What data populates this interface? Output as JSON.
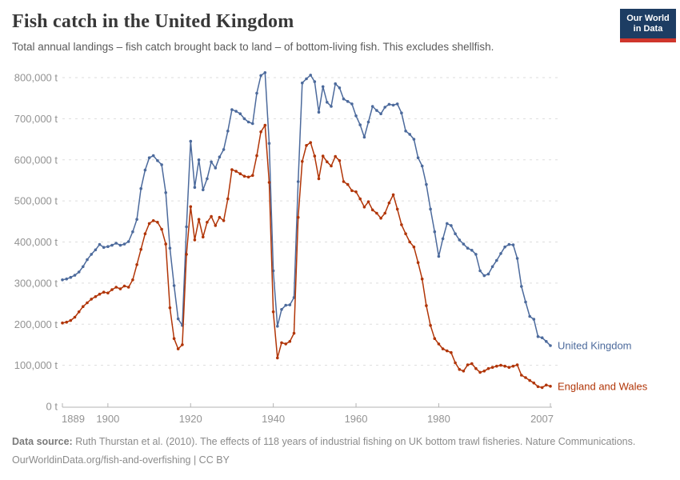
{
  "header": {
    "title": "Fish catch in the United Kingdom",
    "subtitle": "Total annual landings – fish catch brought back to land – of bottom-living fish. This excludes shellfish.",
    "logo": {
      "line1": "Our World",
      "line2": "in Data",
      "bg_color": "#1d3d63",
      "accent_color": "#cf362c"
    }
  },
  "footer": {
    "source_label": "Data source:",
    "source_text": " Ruth Thurstan et al. (2010). The effects of 118 years of industrial fishing on UK bottom trawl fisheries. Nature Communications.",
    "link_line": "OurWorldinData.org/fish-and-overfishing | CC BY"
  },
  "chart_data": {
    "type": "line",
    "title": "Fish catch in the United Kingdom",
    "unit": "t",
    "ylabel": "",
    "xlabel": "",
    "ylim": [
      0,
      800000
    ],
    "y_ticks": [
      0,
      100000,
      200000,
      300000,
      400000,
      500000,
      600000,
      700000,
      800000
    ],
    "x_ticks": [
      1889,
      1900,
      1920,
      1940,
      1960,
      1980,
      2007
    ],
    "grid": "horizontal-dashed",
    "legend_position": "right-end-labels",
    "marker": "circle",
    "x": [
      1889,
      1890,
      1891,
      1892,
      1893,
      1894,
      1895,
      1896,
      1897,
      1898,
      1899,
      1900,
      1901,
      1902,
      1903,
      1904,
      1905,
      1906,
      1907,
      1908,
      1909,
      1910,
      1911,
      1912,
      1913,
      1914,
      1915,
      1916,
      1917,
      1918,
      1919,
      1920,
      1921,
      1922,
      1923,
      1924,
      1925,
      1926,
      1927,
      1928,
      1929,
      1930,
      1931,
      1932,
      1933,
      1934,
      1935,
      1936,
      1937,
      1938,
      1939,
      1940,
      1941,
      1942,
      1943,
      1944,
      1945,
      1946,
      1947,
      1948,
      1949,
      1950,
      1951,
      1952,
      1953,
      1954,
      1955,
      1956,
      1957,
      1958,
      1959,
      1960,
      1961,
      1962,
      1963,
      1964,
      1965,
      1966,
      1967,
      1968,
      1969,
      1970,
      1971,
      1972,
      1973,
      1974,
      1975,
      1976,
      1977,
      1978,
      1979,
      1980,
      1981,
      1982,
      1983,
      1984,
      1985,
      1986,
      1987,
      1988,
      1989,
      1990,
      1991,
      1992,
      1993,
      1994,
      1995,
      1996,
      1997,
      1998,
      1999,
      2000,
      2001,
      2002,
      2003,
      2004,
      2005,
      2006,
      2007
    ],
    "series": [
      {
        "name": "United Kingdom",
        "color": "#4C6A9C",
        "values": [
          308000,
          310000,
          314000,
          319000,
          327000,
          340000,
          357000,
          370000,
          381000,
          394000,
          387000,
          389000,
          392000,
          397000,
          392000,
          395000,
          401000,
          425000,
          455000,
          530000,
          575000,
          605000,
          610000,
          598000,
          588000,
          520000,
          385000,
          294000,
          213000,
          197000,
          437000,
          645000,
          533000,
          600000,
          527000,
          554000,
          595000,
          580000,
          607000,
          625000,
          670000,
          722000,
          718000,
          712000,
          700000,
          692000,
          688000,
          762000,
          805000,
          812000,
          640000,
          330000,
          195000,
          236000,
          246000,
          247000,
          265000,
          547000,
          787000,
          797000,
          806000,
          790000,
          716000,
          778000,
          740000,
          730000,
          785000,
          775000,
          748000,
          742000,
          736000,
          707000,
          685000,
          655000,
          692000,
          730000,
          720000,
          712000,
          728000,
          735000,
          733000,
          736000,
          714000,
          670000,
          662000,
          650000,
          605000,
          585000,
          540000,
          480000,
          425000,
          365000,
          408000,
          445000,
          440000,
          420000,
          405000,
          395000,
          385000,
          380000,
          370000,
          330000,
          318000,
          322000,
          340000,
          355000,
          372000,
          388000,
          394000,
          393000,
          360000,
          292000,
          254000,
          219000,
          212000,
          170000,
          167000,
          158000,
          148000
        ]
      },
      {
        "name": "England and Wales",
        "color": "#B13507",
        "values": [
          203000,
          205000,
          209000,
          217000,
          230000,
          243000,
          252000,
          261000,
          267000,
          273000,
          278000,
          276000,
          284000,
          290000,
          286000,
          293000,
          290000,
          308000,
          345000,
          382000,
          420000,
          445000,
          452000,
          448000,
          431000,
          395000,
          240000,
          165000,
          140000,
          150000,
          370000,
          486000,
          405000,
          455000,
          412000,
          448000,
          462000,
          440000,
          460000,
          452000,
          505000,
          576000,
          572000,
          566000,
          560000,
          558000,
          562000,
          610000,
          668000,
          684000,
          545000,
          230000,
          118000,
          155000,
          152000,
          158000,
          178000,
          460000,
          596000,
          635000,
          642000,
          609000,
          554000,
          609000,
          595000,
          585000,
          608000,
          598000,
          547000,
          540000,
          525000,
          522000,
          505000,
          485000,
          498000,
          478000,
          470000,
          458000,
          470000,
          495000,
          515000,
          480000,
          442000,
          420000,
          400000,
          388000,
          350000,
          310000,
          245000,
          197000,
          165000,
          152000,
          140000,
          135000,
          131000,
          106000,
          90000,
          86000,
          101000,
          104000,
          92000,
          83000,
          86000,
          92000,
          95000,
          98000,
          100000,
          98000,
          95000,
          98000,
          101000,
          76000,
          70000,
          63000,
          57000,
          48000,
          46000,
          52000,
          49000
        ]
      }
    ],
    "style": {
      "gridline_color": "#dedede",
      "axis_color": "#b3b3b3",
      "tick_label_color": "#939393"
    }
  }
}
